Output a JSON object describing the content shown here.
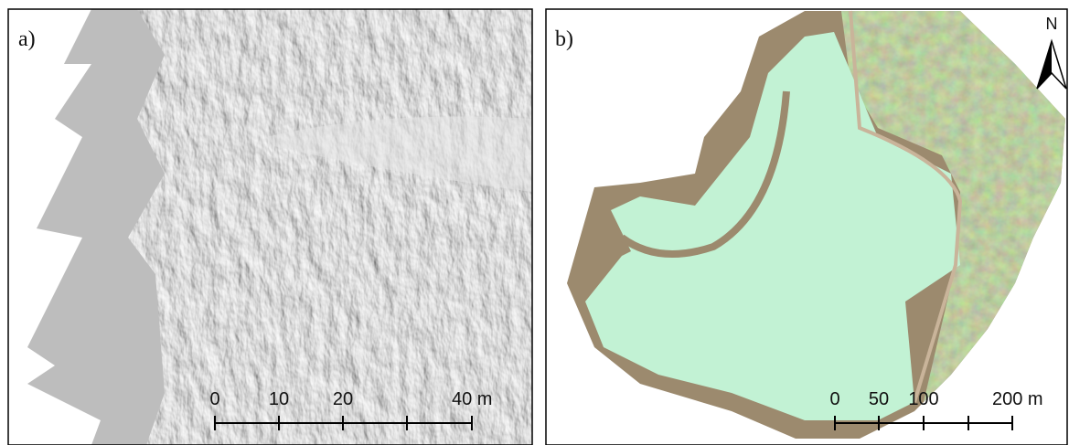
{
  "panels": [
    {
      "label": "a)",
      "scale_bar": {
        "labels": [
          "0",
          "10",
          "20",
          "40 m"
        ]
      }
    },
    {
      "label": "b)",
      "north": "N",
      "scale_bar": {
        "labels": [
          "0",
          "50",
          "100",
          "200 m"
        ]
      }
    }
  ]
}
